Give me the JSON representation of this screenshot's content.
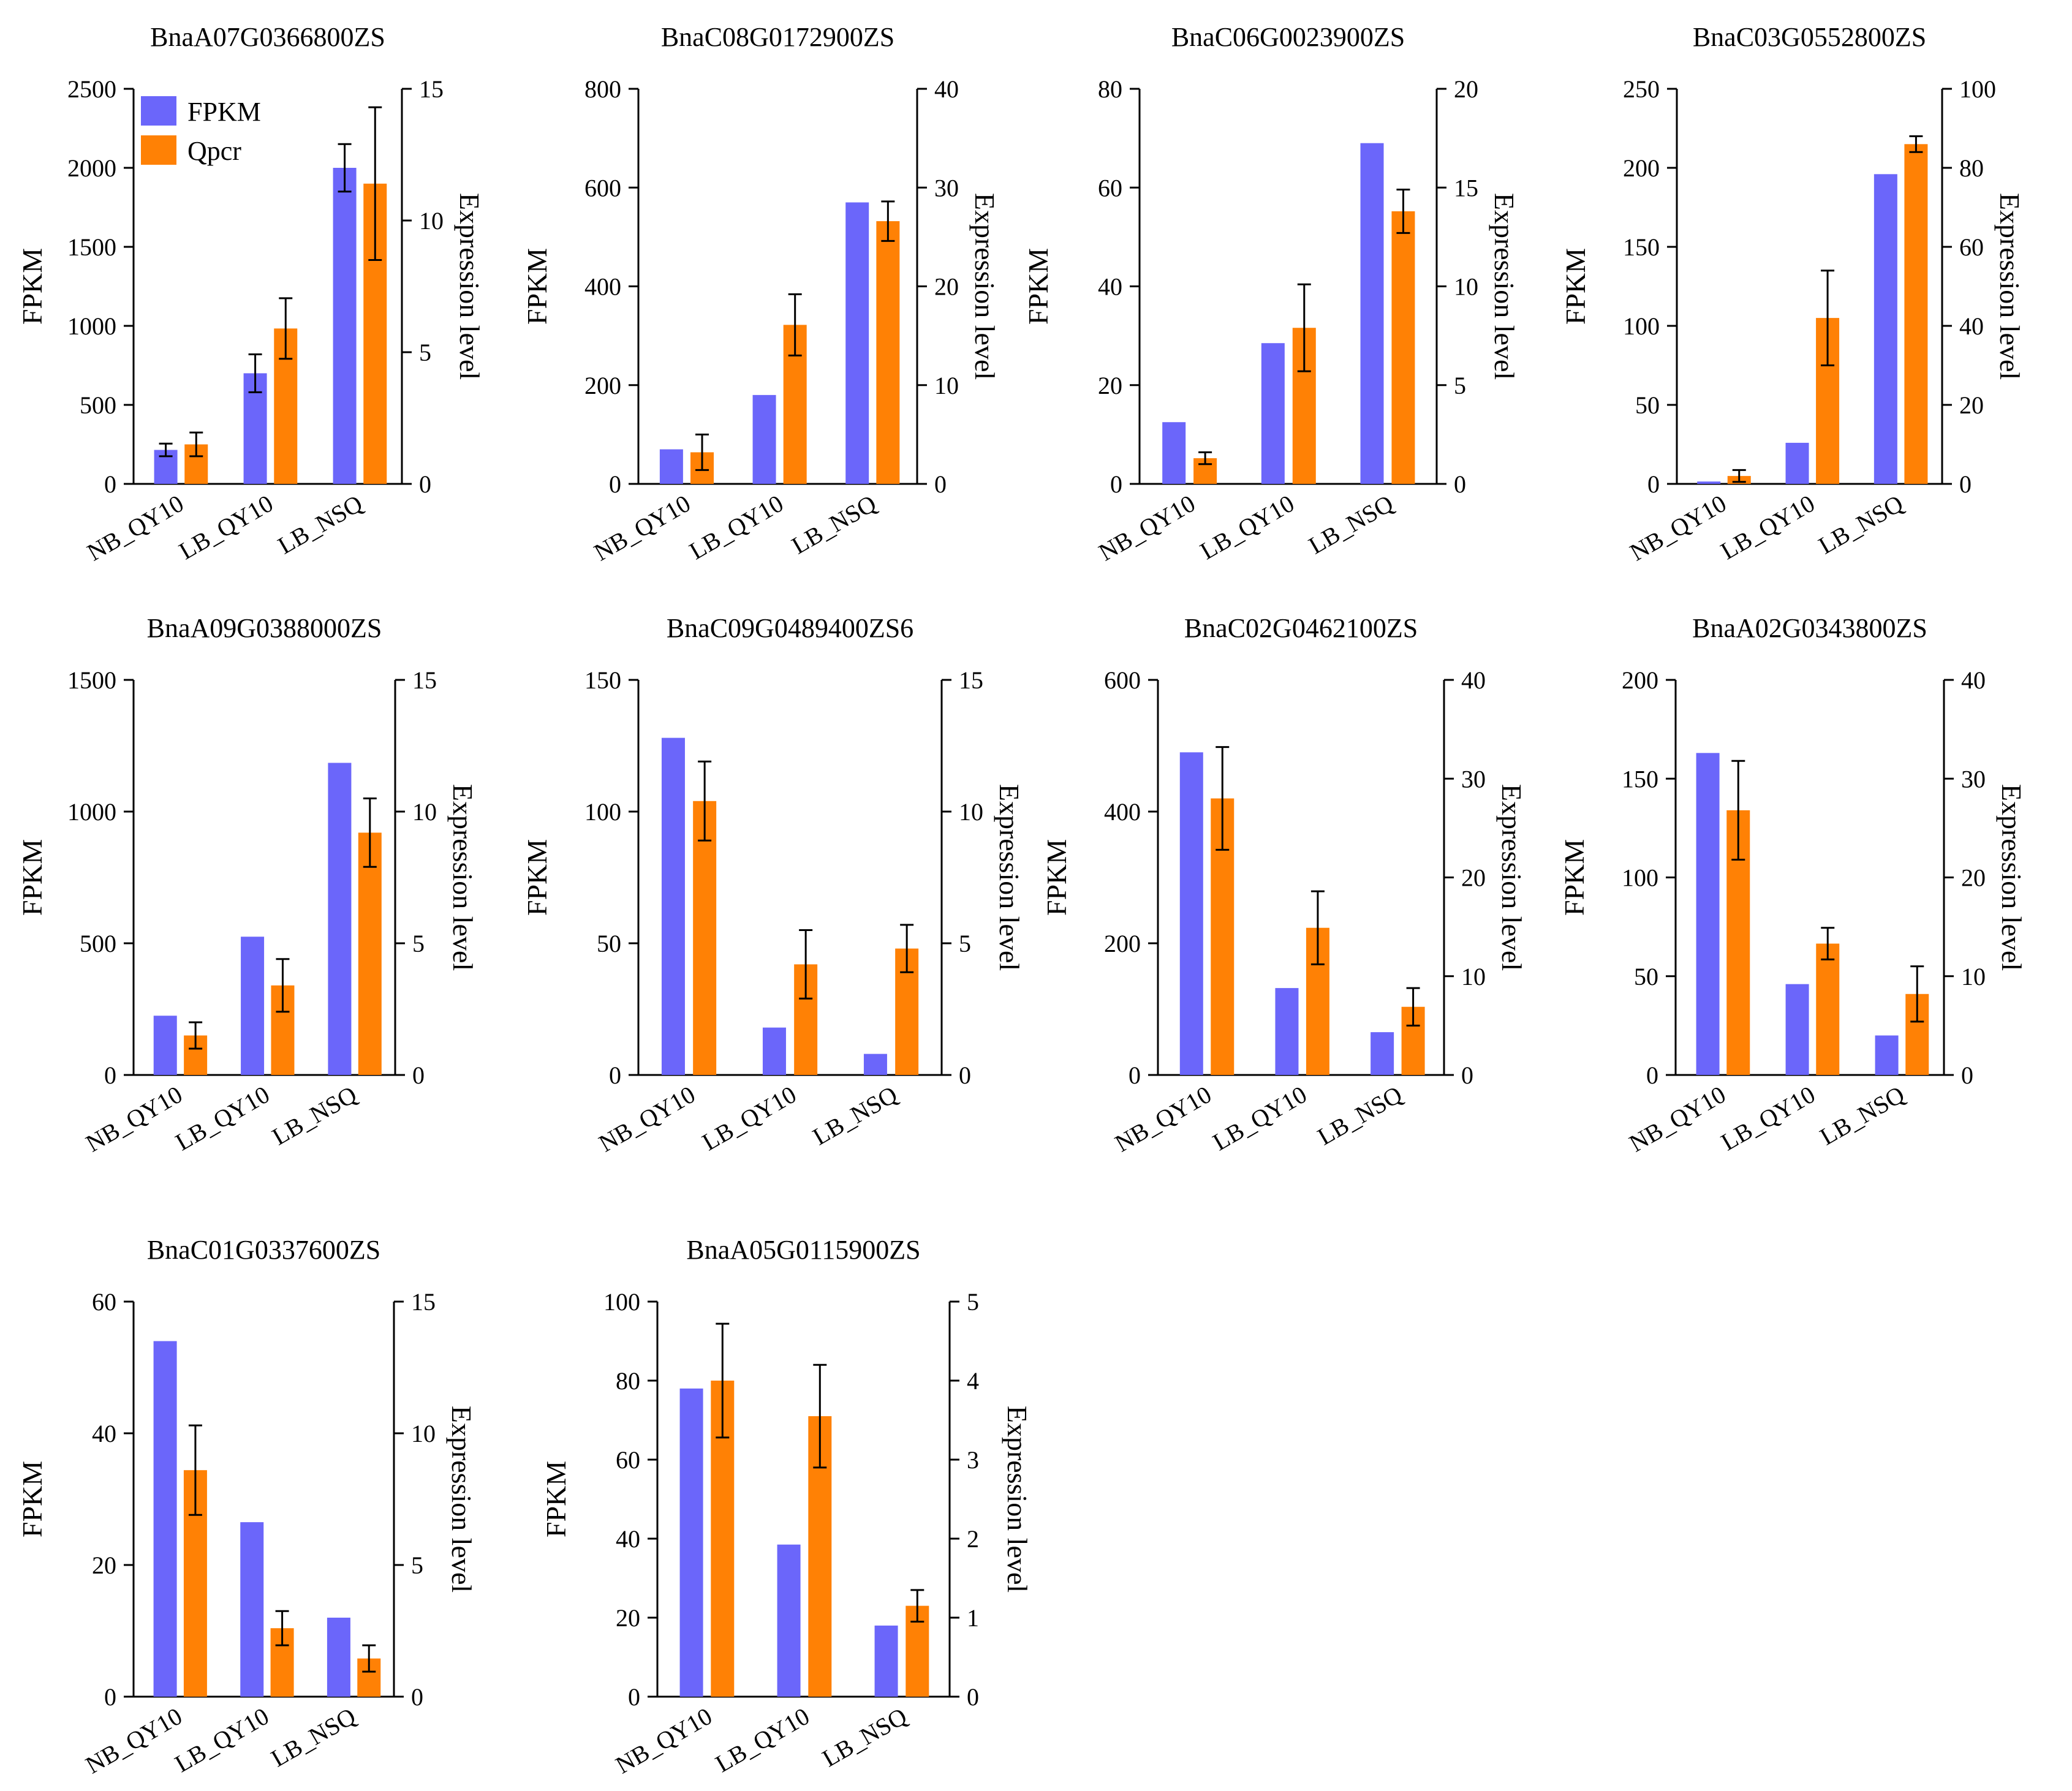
{
  "colors": {
    "fpkm": "#6b66fa",
    "qpcr": "#ff8105"
  },
  "legend": {
    "fpkm_label": "FPKM",
    "qpcr_label": "Qpcr"
  },
  "chart_data": [
    {
      "type": "bar",
      "title": "BnaA07G0366800ZS",
      "categories": [
        "NB_QY10",
        "LB_QY10",
        "LB_NSQ"
      ],
      "ylabel": "FPKM",
      "y2label": "Expression level",
      "ylim": [
        0,
        2500
      ],
      "yticks": [
        0,
        500,
        1000,
        1500,
        2000,
        2500
      ],
      "y2lim": [
        0,
        15
      ],
      "y2ticks": [
        0,
        5,
        10,
        15
      ],
      "series": [
        {
          "name": "FPKM",
          "axis": "left",
          "values": [
            215,
            700,
            2000
          ],
          "errors": [
            40,
            120,
            150
          ]
        },
        {
          "name": "Qpcr",
          "axis": "right",
          "values": [
            1.5,
            5.9,
            11.4
          ],
          "errors": [
            0.45,
            1.15,
            2.9
          ]
        }
      ],
      "legend": true
    },
    {
      "type": "bar",
      "title": "BnaC08G0172900ZS",
      "categories": [
        "NB_QY10",
        "LB_QY10",
        "LB_NSQ"
      ],
      "ylabel": "FPKM",
      "y2label": "Expression level",
      "ylim": [
        0,
        800
      ],
      "yticks": [
        0,
        200,
        400,
        600,
        800
      ],
      "y2lim": [
        0,
        40
      ],
      "y2ticks": [
        0,
        10,
        20,
        30,
        40
      ],
      "series": [
        {
          "name": "FPKM",
          "axis": "left",
          "values": [
            70,
            180,
            570
          ],
          "errors": [
            null,
            null,
            null
          ]
        },
        {
          "name": "Qpcr",
          "axis": "right",
          "values": [
            3.2,
            16.1,
            26.6
          ],
          "errors": [
            1.8,
            3.1,
            2.0
          ]
        }
      ],
      "legend": false
    },
    {
      "type": "bar",
      "title": "BnaC06G0023900ZS",
      "categories": [
        "NB_QY10",
        "LB_QY10",
        "LB_NSQ"
      ],
      "ylabel": "FPKM",
      "y2label": "Expression level",
      "ylim": [
        0,
        80
      ],
      "yticks": [
        0,
        20,
        40,
        60,
        80
      ],
      "y2lim": [
        0,
        20
      ],
      "y2ticks": [
        0,
        5,
        10,
        15,
        20
      ],
      "series": [
        {
          "name": "FPKM",
          "axis": "left",
          "values": [
            12.5,
            28.5,
            69
          ],
          "errors": [
            null,
            null,
            null
          ]
        },
        {
          "name": "Qpcr",
          "axis": "right",
          "values": [
            1.3,
            7.9,
            13.8
          ],
          "errors": [
            0.3,
            2.2,
            1.1
          ]
        }
      ],
      "legend": false
    },
    {
      "type": "bar",
      "title": "BnaC03G0552800ZS",
      "categories": [
        "NB_QY10",
        "LB_QY10",
        "LB_NSQ"
      ],
      "ylabel": "FPKM",
      "y2label": "Expression level",
      "ylim": [
        0,
        250
      ],
      "yticks": [
        0,
        50,
        100,
        150,
        200,
        250
      ],
      "y2lim": [
        0,
        100
      ],
      "y2ticks": [
        0,
        20,
        40,
        60,
        80,
        100
      ],
      "series": [
        {
          "name": "FPKM",
          "axis": "left",
          "values": [
            1.5,
            26,
            196
          ],
          "errors": [
            null,
            null,
            null
          ]
        },
        {
          "name": "Qpcr",
          "axis": "right",
          "values": [
            2,
            42,
            86
          ],
          "errors": [
            1.5,
            12,
            2
          ]
        }
      ],
      "legend": false
    },
    {
      "type": "bar",
      "title": "BnaA09G0388000ZS",
      "categories": [
        "NB_QY10",
        "LB_QY10",
        "LB_NSQ"
      ],
      "ylabel": "FPKM",
      "y2label": "Expression level",
      "ylim": [
        0,
        1500
      ],
      "yticks": [
        0,
        500,
        1000,
        1500
      ],
      "y2lim": [
        0,
        15
      ],
      "y2ticks": [
        0,
        5,
        10,
        15
      ],
      "series": [
        {
          "name": "FPKM",
          "axis": "left",
          "values": [
            225,
            525,
            1185
          ],
          "errors": [
            null,
            null,
            null
          ]
        },
        {
          "name": "Qpcr",
          "axis": "right",
          "values": [
            1.5,
            3.4,
            9.2
          ],
          "errors": [
            0.5,
            1.0,
            1.3
          ]
        }
      ],
      "legend": false
    },
    {
      "type": "bar",
      "title": "BnaC09G0489400ZS6",
      "categories": [
        "NB_QY10",
        "LB_QY10",
        "LB_NSQ"
      ],
      "ylabel": "FPKM",
      "y2label": "Expression level",
      "ylim": [
        0,
        150
      ],
      "yticks": [
        0,
        50,
        100,
        150
      ],
      "y2lim": [
        0,
        15
      ],
      "y2ticks": [
        0,
        5,
        10,
        15
      ],
      "series": [
        {
          "name": "FPKM",
          "axis": "left",
          "values": [
            128,
            18,
            8
          ],
          "errors": [
            null,
            null,
            null
          ]
        },
        {
          "name": "Qpcr",
          "axis": "right",
          "values": [
            10.4,
            4.2,
            4.8
          ],
          "errors": [
            1.5,
            1.3,
            0.9
          ]
        }
      ],
      "legend": false
    },
    {
      "type": "bar",
      "title": "BnaC02G0462100ZS",
      "categories": [
        "NB_QY10",
        "LB_QY10",
        "LB_NSQ"
      ],
      "ylabel": "FPKM",
      "y2label": "Expression level",
      "ylim": [
        0,
        600
      ],
      "yticks": [
        0,
        200,
        400,
        600
      ],
      "y2lim": [
        0,
        40
      ],
      "y2ticks": [
        0,
        10,
        20,
        30,
        40
      ],
      "series": [
        {
          "name": "FPKM",
          "axis": "left",
          "values": [
            490,
            132,
            65
          ],
          "errors": [
            null,
            null,
            null
          ]
        },
        {
          "name": "Qpcr",
          "axis": "right",
          "values": [
            28,
            14.9,
            6.9
          ],
          "errors": [
            5.2,
            3.7,
            1.9
          ]
        }
      ],
      "legend": false
    },
    {
      "type": "bar",
      "title": "BnaA02G0343800ZS",
      "categories": [
        "NB_QY10",
        "LB_QY10",
        "LB_NSQ"
      ],
      "ylabel": "FPKM",
      "y2label": "Expression level",
      "ylim": [
        0,
        200
      ],
      "yticks": [
        0,
        50,
        100,
        150,
        200
      ],
      "y2lim": [
        0,
        40
      ],
      "y2ticks": [
        0,
        10,
        20,
        30,
        40
      ],
      "series": [
        {
          "name": "FPKM",
          "axis": "left",
          "values": [
            163,
            46,
            20
          ],
          "errors": [
            null,
            null,
            null
          ]
        },
        {
          "name": "Qpcr",
          "axis": "right",
          "values": [
            26.8,
            13.3,
            8.2
          ],
          "errors": [
            5,
            1.6,
            2.8
          ]
        }
      ],
      "legend": false
    },
    {
      "type": "bar",
      "title": "BnaC01G0337600ZS",
      "categories": [
        "NB_QY10",
        "LB_QY10",
        "LB_NSQ"
      ],
      "ylabel": "FPKM",
      "y2label": "Expression level",
      "ylim": [
        0,
        60
      ],
      "yticks": [
        0,
        20,
        40,
        60
      ],
      "y2lim": [
        0,
        15
      ],
      "y2ticks": [
        0,
        5,
        10,
        15
      ],
      "series": [
        {
          "name": "FPKM",
          "axis": "left",
          "values": [
            54,
            26.5,
            12
          ],
          "errors": [
            null,
            null,
            null
          ]
        },
        {
          "name": "Qpcr",
          "axis": "right",
          "values": [
            8.6,
            2.6,
            1.45
          ],
          "errors": [
            1.7,
            0.65,
            0.5
          ]
        }
      ],
      "legend": false
    },
    {
      "type": "bar",
      "title": "BnaA05G0115900ZS",
      "categories": [
        "NB_QY10",
        "LB_QY10",
        "LB_NSQ"
      ],
      "ylabel": "FPKM",
      "y2label": "Expression level",
      "ylim": [
        0,
        100
      ],
      "yticks": [
        0,
        20,
        40,
        60,
        80,
        100
      ],
      "y2lim": [
        0,
        5
      ],
      "y2ticks": [
        0,
        1,
        2,
        3,
        4,
        5
      ],
      "series": [
        {
          "name": "FPKM",
          "axis": "left",
          "values": [
            78,
            38.5,
            18
          ],
          "errors": [
            null,
            null,
            null
          ]
        },
        {
          "name": "Qpcr",
          "axis": "right",
          "values": [
            4.0,
            3.55,
            1.15
          ],
          "errors": [
            0.72,
            0.65,
            0.2
          ]
        }
      ],
      "legend": false
    }
  ]
}
